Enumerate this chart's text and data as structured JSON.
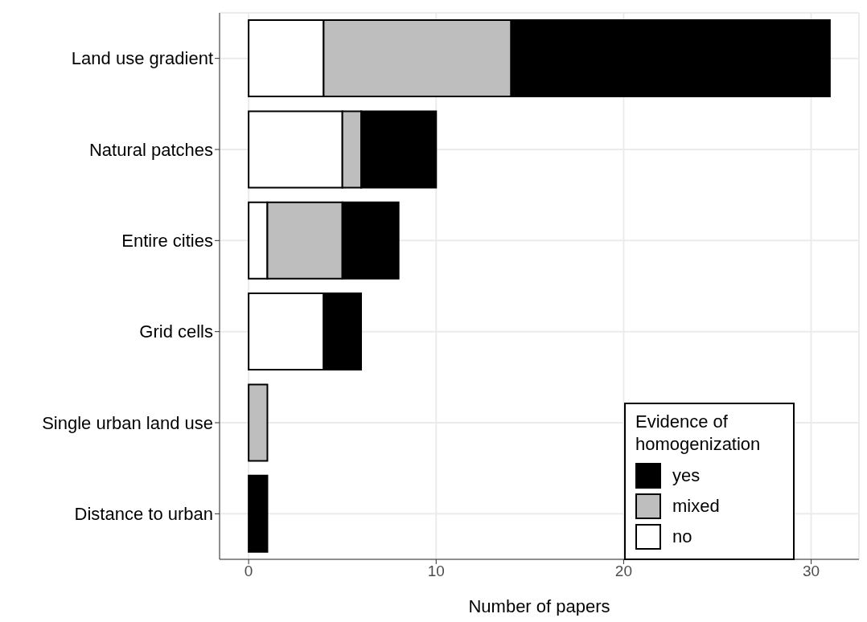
{
  "chart_data": {
    "type": "bar",
    "orientation": "horizontal",
    "stacked": true,
    "categories": [
      "Land use gradient",
      "Natural patches",
      "Entire cities",
      "Grid cells",
      "Single urban land use",
      "Distance to urban"
    ],
    "series": [
      {
        "name": "no",
        "color": "#ffffff",
        "values": [
          4,
          5,
          1,
          4,
          0,
          0
        ]
      },
      {
        "name": "mixed",
        "color": "#bebebe",
        "values": [
          10,
          1,
          4,
          0,
          1,
          0
        ]
      },
      {
        "name": "yes",
        "color": "#000000",
        "values": [
          17,
          4,
          3,
          2,
          0,
          1
        ]
      }
    ],
    "xlabel": "Number of papers",
    "legend_title": "Evidence of homogenization",
    "xlim": [
      -1.55,
      32.55
    ],
    "xticks": [
      0,
      10,
      20,
      30
    ],
    "grid": true,
    "legend": "bottom right"
  }
}
